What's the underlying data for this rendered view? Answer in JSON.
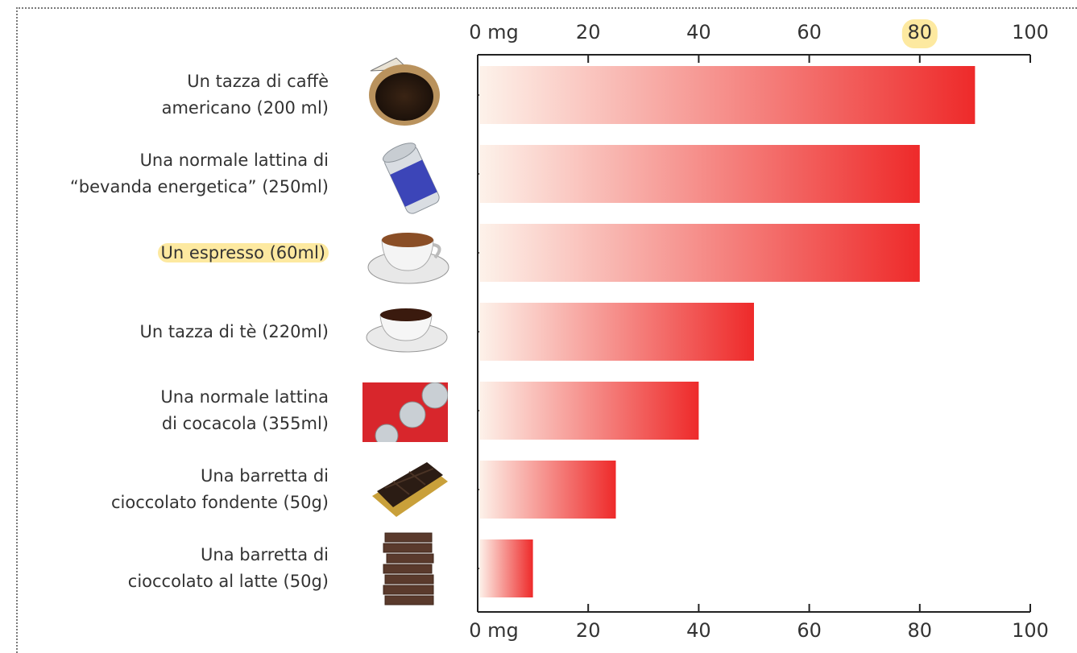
{
  "chart_data": {
    "type": "bar",
    "orientation": "horizontal",
    "categories": [
      [
        "Un tazza di caffè",
        "americano (200 ml)"
      ],
      [
        "Una normale lattina di",
        "“bevanda energetica” (250ml)"
      ],
      [
        "Un espresso (60ml)"
      ],
      [
        "Un tazza di tè (220ml)"
      ],
      [
        "Una normale lattina",
        "di cocacola (355ml)"
      ],
      [
        "Una barretta di",
        "cioccolato fondente (50g)"
      ],
      [
        "Una barretta di",
        "cioccolato al latte (50g)"
      ]
    ],
    "values": [
      90,
      80,
      80,
      50,
      40,
      25,
      10
    ],
    "highlighted_category": 2,
    "xlim": [
      0,
      100
    ],
    "xticks": [
      "0 mg",
      "20",
      "40",
      "60",
      "80",
      "100"
    ],
    "highlighted_tick": "80",
    "axis_position": "top-and-bottom",
    "gradient": [
      "#fdf2ea",
      "#ee2a2a"
    ]
  },
  "icons": [
    "coffee-filter-icon",
    "energy-drink-can-icon",
    "espresso-cup-icon",
    "tea-cup-icon",
    "cola-cans-icon",
    "dark-chocolate-icon",
    "milk-chocolate-stack-icon"
  ]
}
